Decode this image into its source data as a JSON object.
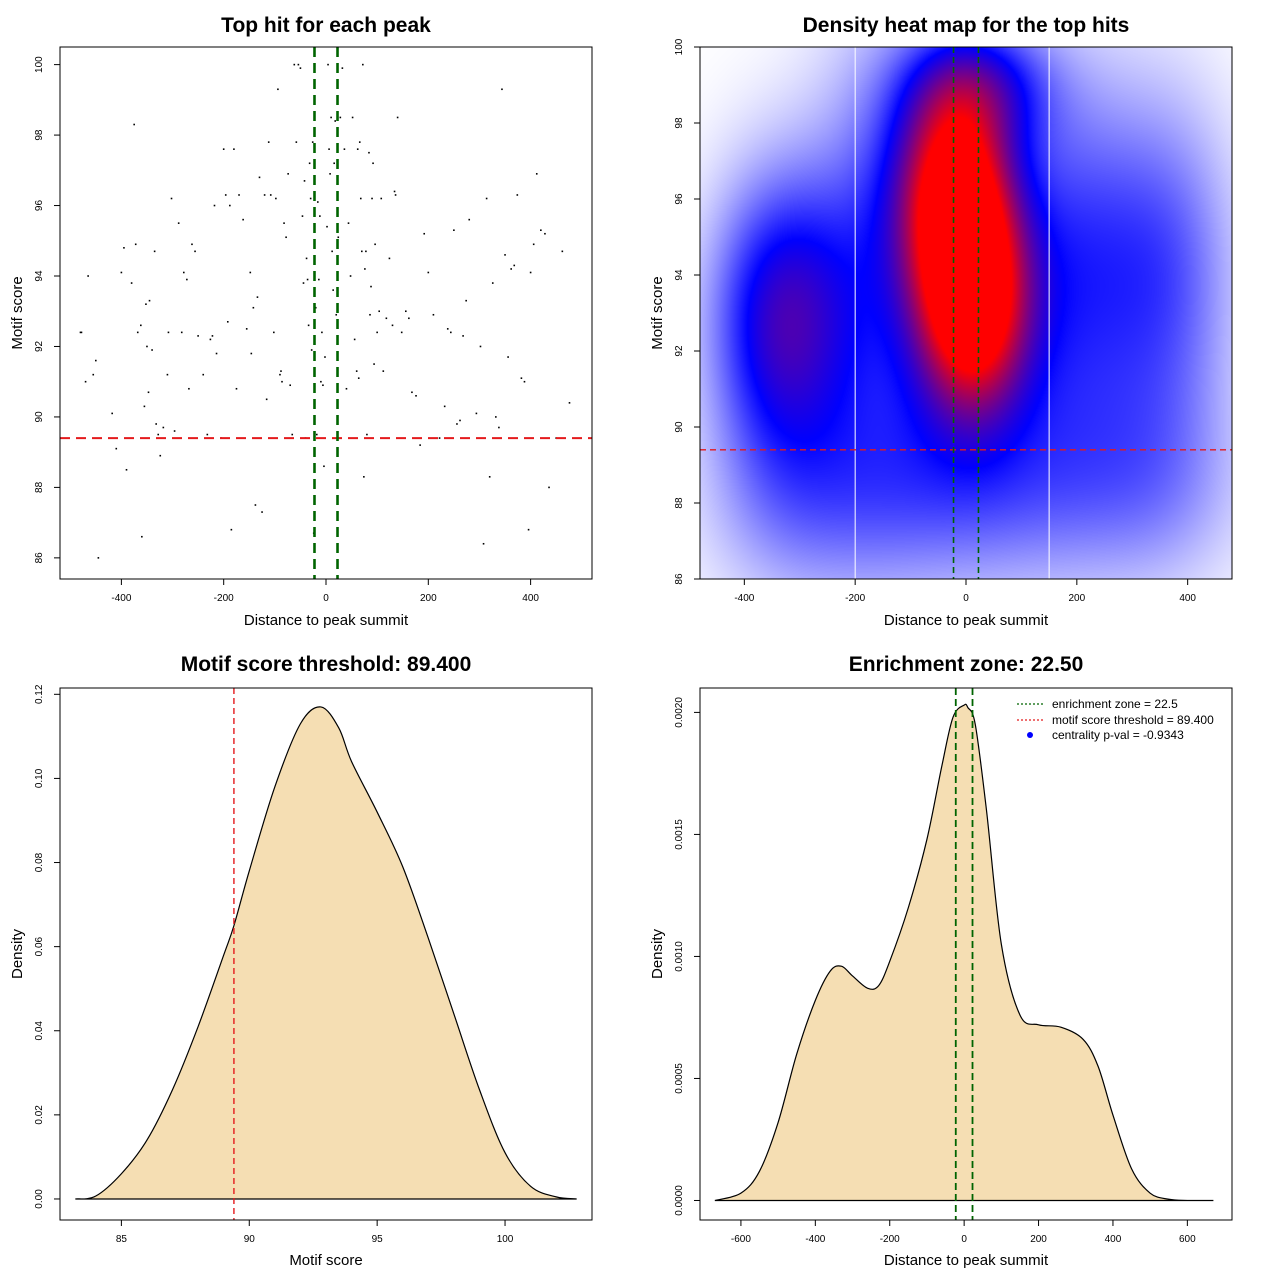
{
  "colors": {
    "threshold_line": "#e41a1c",
    "zone_line": "#006400",
    "density_fill": "#f5deb3",
    "heat_low": "#ffffff",
    "heat_mid": "#0000ff",
    "heat_high": "#ff0000",
    "point": "#000000",
    "centrality_dot": "#0000ff"
  },
  "chart_data": [
    {
      "id": "scatter",
      "type": "scatter",
      "title": "Top hit for each peak",
      "xlabel": "Distance to peak summit",
      "ylabel": "Motif score",
      "xlim": [
        -520,
        520
      ],
      "ylim": [
        85.4,
        100.5
      ],
      "xticks": [
        -400,
        -200,
        0,
        200,
        400
      ],
      "yticks": [
        86,
        88,
        90,
        92,
        94,
        96,
        98,
        100
      ],
      "threshold": 89.4,
      "zone_lines": [
        -22.5,
        22.5
      ],
      "points": [
        [
          -480,
          92.4
        ],
        [
          -470,
          91
        ],
        [
          -465,
          94
        ],
        [
          -455,
          91.2
        ],
        [
          -450,
          91.6
        ],
        [
          -445,
          86
        ],
        [
          -410,
          89.1
        ],
        [
          -400,
          94.1
        ],
        [
          -395,
          94.8
        ],
        [
          -390,
          88.5
        ],
        [
          -380,
          93.8
        ],
        [
          -375,
          98.3
        ],
        [
          -372,
          94.9
        ],
        [
          -368,
          92.4
        ],
        [
          -362,
          92.6
        ],
        [
          -360,
          86.6
        ],
        [
          -355,
          90.3
        ],
        [
          -352,
          93.2
        ],
        [
          -350,
          92
        ],
        [
          -347,
          90.7
        ],
        [
          -345,
          93.3
        ],
        [
          -340,
          91.9
        ],
        [
          -335,
          94.7
        ],
        [
          -332,
          89.8
        ],
        [
          -328,
          89.5
        ],
        [
          -324,
          88.9
        ],
        [
          -318,
          89.7
        ],
        [
          -310,
          91.2
        ],
        [
          -302,
          96.2
        ],
        [
          -296,
          89.6
        ],
        [
          -288,
          95.5
        ],
        [
          -282,
          92.4
        ],
        [
          -278,
          94.1
        ],
        [
          -272,
          93.9
        ],
        [
          -268,
          90.8
        ],
        [
          -262,
          94.9
        ],
        [
          -256,
          94.7
        ],
        [
          -250,
          92.3
        ],
        [
          -240,
          91.2
        ],
        [
          -232,
          89.5
        ],
        [
          -222,
          92.3
        ],
        [
          -218,
          96
        ],
        [
          -214,
          91.8
        ],
        [
          -205,
          89.4
        ],
        [
          -200,
          97.6
        ],
        [
          -196,
          96.3
        ],
        [
          -192,
          92.7
        ],
        [
          -188,
          96
        ],
        [
          -185,
          86.8
        ],
        [
          -180,
          97.6
        ],
        [
          -175,
          90.8
        ],
        [
          -170,
          96.3
        ],
        [
          -162,
          95.6
        ],
        [
          -155,
          92.5
        ],
        [
          -148,
          94.1
        ],
        [
          -142,
          93.1
        ],
        [
          -138,
          87.5
        ],
        [
          -134,
          93.4
        ],
        [
          -130,
          96.8
        ],
        [
          -125,
          87.3
        ],
        [
          -120,
          96.3
        ],
        [
          -116,
          90.5
        ],
        [
          -112,
          97.8
        ],
        [
          -108,
          96.3
        ],
        [
          -102,
          92.4
        ],
        [
          -98,
          96.2
        ],
        [
          -94,
          99.3
        ],
        [
          -90,
          91.2
        ],
        [
          -86,
          91
        ],
        [
          -82,
          95.5
        ],
        [
          -78,
          95.1
        ],
        [
          -74,
          96.9
        ],
        [
          -70,
          90.9
        ],
        [
          -66,
          89.5
        ],
        [
          -62,
          100
        ],
        [
          -58,
          97.8
        ],
        [
          -54,
          100
        ],
        [
          -50,
          99.9
        ],
        [
          -46,
          95.7
        ],
        [
          -44,
          93.8
        ],
        [
          -42,
          96.7
        ],
        [
          -40,
          89.4
        ],
        [
          -38,
          94.5
        ],
        [
          -36,
          93.9
        ],
        [
          -34,
          92.6
        ],
        [
          -32,
          97.2
        ],
        [
          -30,
          96.2
        ],
        [
          -28,
          91.9
        ],
        [
          -26,
          97.8
        ],
        [
          -24,
          86.7
        ],
        [
          -20,
          93.1
        ],
        [
          -18,
          89.5
        ],
        [
          -16,
          96.1
        ],
        [
          -14,
          93.9
        ],
        [
          -12,
          95.7
        ],
        [
          -10,
          91
        ],
        [
          -8,
          92.4
        ],
        [
          -6,
          90.9
        ],
        [
          -4,
          88.6
        ],
        [
          -2,
          91.7
        ],
        [
          2,
          95.4
        ],
        [
          4,
          100
        ],
        [
          6,
          97.6
        ],
        [
          8,
          96.9
        ],
        [
          10,
          98.5
        ],
        [
          12,
          94.7
        ],
        [
          14,
          93.6
        ],
        [
          16,
          97.2
        ],
        [
          18,
          98.4
        ],
        [
          20,
          92.9
        ],
        [
          24,
          95.1
        ],
        [
          28,
          98.5
        ],
        [
          32,
          99.9
        ],
        [
          36,
          97.6
        ],
        [
          40,
          90.8
        ],
        [
          44,
          95.5
        ],
        [
          48,
          94
        ],
        [
          52,
          98.5
        ],
        [
          56,
          92.2
        ],
        [
          60,
          91.3
        ],
        [
          62,
          97.6
        ],
        [
          64,
          91.1
        ],
        [
          66,
          97.8
        ],
        [
          68,
          96.2
        ],
        [
          70,
          94.7
        ],
        [
          72,
          100
        ],
        [
          74,
          88.3
        ],
        [
          76,
          94.2
        ],
        [
          78,
          94.7
        ],
        [
          80,
          89.5
        ],
        [
          84,
          97.5
        ],
        [
          86,
          92.9
        ],
        [
          88,
          93.7
        ],
        [
          90,
          96.2
        ],
        [
          92,
          97.2
        ],
        [
          94,
          91.5
        ],
        [
          96,
          94.9
        ],
        [
          100,
          92.4
        ],
        [
          104,
          93
        ],
        [
          108,
          96.2
        ],
        [
          112,
          91.3
        ],
        [
          118,
          92.8
        ],
        [
          124,
          94.5
        ],
        [
          130,
          92.6
        ],
        [
          136,
          96.3
        ],
        [
          140,
          98.5
        ],
        [
          148,
          92.4
        ],
        [
          156,
          93
        ],
        [
          162,
          92.8
        ],
        [
          168,
          90.7
        ],
        [
          176,
          90.6
        ],
        [
          184,
          89.2
        ],
        [
          192,
          95.2
        ],
        [
          200,
          94.1
        ],
        [
          210,
          92.9
        ],
        [
          222,
          89.4
        ],
        [
          232,
          90.3
        ],
        [
          238,
          92.5
        ],
        [
          244,
          92.4
        ],
        [
          250,
          95.3
        ],
        [
          256,
          89.8
        ],
        [
          262,
          89.9
        ],
        [
          268,
          92.3
        ],
        [
          274,
          93.3
        ],
        [
          280,
          95.6
        ],
        [
          294,
          90.1
        ],
        [
          302,
          92
        ],
        [
          308,
          86.4
        ],
        [
          314,
          96.2
        ],
        [
          320,
          88.3
        ],
        [
          326,
          93.8
        ],
        [
          332,
          90
        ],
        [
          338,
          89.7
        ],
        [
          344,
          99.3
        ],
        [
          350,
          94.6
        ],
        [
          356,
          91.7
        ],
        [
          362,
          94.2
        ],
        [
          368,
          94.3
        ],
        [
          374,
          96.3
        ],
        [
          382,
          91.1
        ],
        [
          388,
          91
        ],
        [
          396,
          86.8
        ],
        [
          400,
          94.1
        ],
        [
          406,
          94.9
        ],
        [
          412,
          96.9
        ],
        [
          420,
          95.3
        ],
        [
          428,
          95.2
        ],
        [
          436,
          88
        ],
        [
          450,
          89.4
        ],
        [
          462,
          94.7
        ],
        [
          476,
          90.4
        ],
        [
          -478,
          92.4
        ],
        [
          -418,
          90.1
        ],
        [
          -308,
          92.4
        ],
        [
          -226,
          92.2
        ],
        [
          -146,
          91.8
        ],
        [
          -88,
          91.3
        ],
        [
          134,
          96.4
        ]
      ]
    },
    {
      "id": "heatmap",
      "type": "heatmap",
      "title": "Density heat map for the top hits",
      "xlabel": "Distance to peak summit",
      "ylabel": "Motif score",
      "xlim": [
        -480,
        480
      ],
      "ylim": [
        86,
        100
      ],
      "xticks": [
        -400,
        -200,
        0,
        200,
        400
      ],
      "yticks": [
        86,
        88,
        90,
        92,
        94,
        96,
        98,
        100
      ],
      "threshold": 89.4,
      "zone_lines": [
        -22.5,
        22.5
      ],
      "white_lines": [
        -200,
        150
      ],
      "peaks": [
        {
          "x": 10,
          "y": 93.2,
          "amp": 1.0,
          "sx": 70,
          "sy": 2.0
        },
        {
          "x": -20,
          "y": 96.3,
          "amp": 0.85,
          "sx": 70,
          "sy": 1.9
        },
        {
          "x": 20,
          "y": 99.0,
          "amp": 0.35,
          "sx": 90,
          "sy": 1.2
        },
        {
          "x": -330,
          "y": 92.8,
          "amp": 0.5,
          "sx": 90,
          "sy": 2.6
        },
        {
          "x": -150,
          "y": 94.5,
          "amp": 0.25,
          "sx": 90,
          "sy": 4.0
        },
        {
          "x": 180,
          "y": 94.0,
          "amp": 0.3,
          "sx": 100,
          "sy": 3.5
        },
        {
          "x": 360,
          "y": 94.0,
          "amp": 0.25,
          "sx": 90,
          "sy": 3.2
        },
        {
          "x": 0,
          "y": 88.5,
          "amp": 0.25,
          "sx": 160,
          "sy": 2.0
        },
        {
          "x": -300,
          "y": 88.0,
          "amp": 0.15,
          "sx": 120,
          "sy": 2.0
        },
        {
          "x": 330,
          "y": 88.5,
          "amp": 0.15,
          "sx": 120,
          "sy": 2.0
        }
      ]
    },
    {
      "id": "score-density",
      "type": "area",
      "title": "Motif score threshold: 89.400",
      "xlabel": "Motif score",
      "ylabel": "Density",
      "xlim": [
        82.6,
        103.4
      ],
      "ylim": [
        -0.005,
        0.1215
      ],
      "xticks": [
        85,
        90,
        95,
        100
      ],
      "yticks": [
        0.0,
        0.02,
        0.04,
        0.06,
        0.08,
        0.1,
        0.12
      ],
      "ytick_labels": [
        "0.00",
        "0.02",
        "0.04",
        "0.06",
        "0.08",
        "0.10",
        "0.12"
      ],
      "threshold": 89.4,
      "x": [
        83.2,
        84,
        85,
        86,
        87,
        88,
        89,
        89.4,
        90,
        91,
        92,
        92.8,
        93.5,
        94,
        95,
        96,
        97,
        98,
        99,
        100,
        101,
        102,
        102.8
      ],
      "y": [
        0.0,
        0.0007,
        0.006,
        0.014,
        0.026,
        0.041,
        0.058,
        0.065,
        0.078,
        0.098,
        0.113,
        0.117,
        0.112,
        0.104,
        0.092,
        0.079,
        0.062,
        0.044,
        0.026,
        0.011,
        0.003,
        0.0005,
        0.0
      ]
    },
    {
      "id": "distance-density",
      "type": "area",
      "title": "Enrichment zone: 22.50",
      "xlabel": "Distance to peak summit",
      "ylabel": "Density",
      "xlim": [
        -710,
        720
      ],
      "ylim": [
        -8e-05,
        0.0021
      ],
      "xticks": [
        -600,
        -400,
        -200,
        0,
        200,
        400,
        600
      ],
      "yticks": [
        0.0,
        0.0005,
        0.001,
        0.0015,
        0.002
      ],
      "ytick_labels": [
        "0.0000",
        "0.0005",
        "0.0010",
        "0.0015",
        "0.0020"
      ],
      "zone_lines": [
        -22.5,
        22.5
      ],
      "x": [
        -670,
        -600,
        -550,
        -500,
        -450,
        -400,
        -360,
        -330,
        -300,
        -260,
        -230,
        -200,
        -150,
        -100,
        -60,
        -30,
        0,
        10,
        30,
        60,
        100,
        150,
        200,
        260,
        320,
        360,
        400,
        450,
        500,
        550,
        600,
        670
      ],
      "y": [
        0.0,
        3e-05,
        0.00012,
        0.00032,
        0.0006,
        0.00082,
        0.00094,
        0.00096,
        0.00092,
        0.00087,
        0.00088,
        0.00098,
        0.0012,
        0.00148,
        0.00178,
        0.00198,
        0.00203,
        0.00202,
        0.00195,
        0.0016,
        0.00105,
        0.00076,
        0.00072,
        0.00071,
        0.00066,
        0.00055,
        0.00035,
        0.00013,
        3e-05,
        5e-06,
        0.0,
        0.0
      ],
      "legend": [
        {
          "label": "enrichment zone = 22.5",
          "kind": "dotted-line",
          "color": "#006400"
        },
        {
          "label": "motif score threshold = 89.400",
          "kind": "dotted-line",
          "color": "#e41a1c"
        },
        {
          "label": "centrality p-val = -0.9343",
          "kind": "dot",
          "color": "#0000ff"
        }
      ]
    }
  ]
}
